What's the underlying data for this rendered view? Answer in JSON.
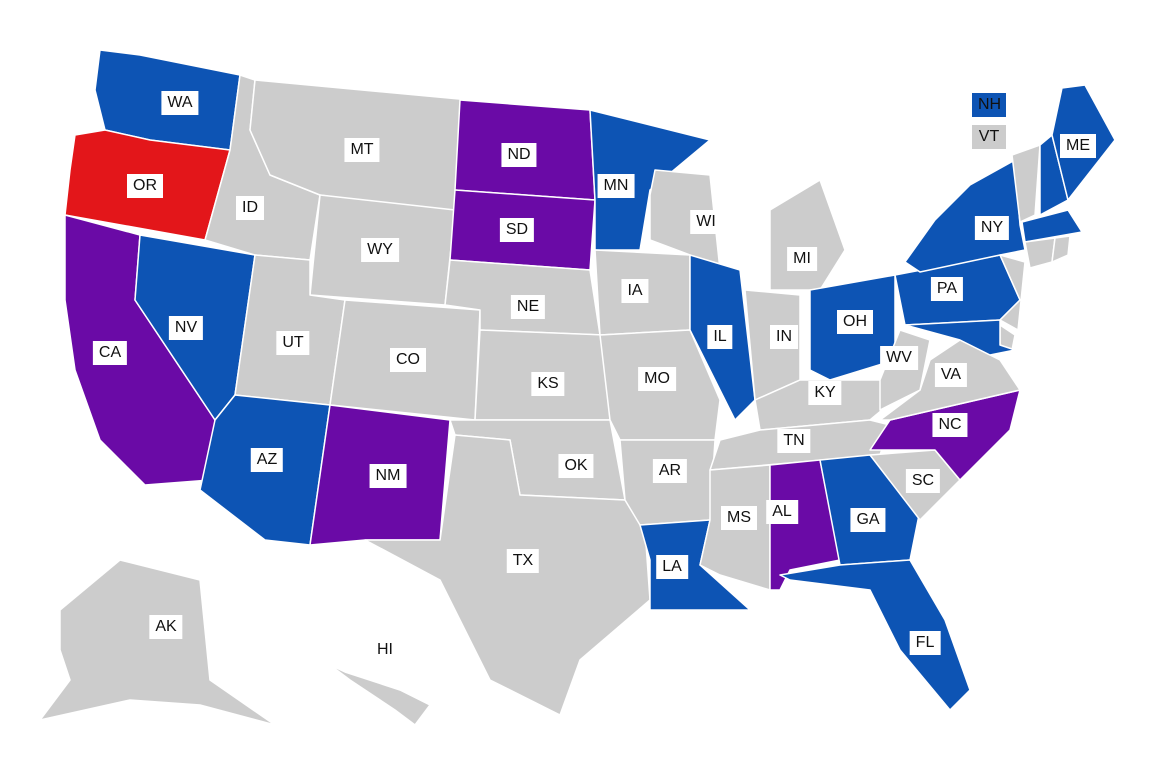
{
  "colors": {
    "blue": "#0d54b4",
    "purple": "#6a0aa6",
    "red": "#e3161a",
    "gray": "#cccccc"
  },
  "legend": [
    {
      "label": "NH",
      "color": "blue"
    },
    {
      "label": "VT",
      "color": "gray"
    }
  ],
  "states": [
    {
      "id": "WA",
      "color": "blue",
      "label": "WA"
    },
    {
      "id": "OR",
      "color": "red",
      "label": "OR"
    },
    {
      "id": "CA",
      "color": "purple",
      "label": "CA"
    },
    {
      "id": "NV",
      "color": "blue",
      "label": "NV"
    },
    {
      "id": "ID",
      "color": "gray",
      "label": "ID"
    },
    {
      "id": "MT",
      "color": "gray",
      "label": "MT"
    },
    {
      "id": "WY",
      "color": "gray",
      "label": "WY"
    },
    {
      "id": "UT",
      "color": "gray",
      "label": "UT"
    },
    {
      "id": "CO",
      "color": "gray",
      "label": "CO"
    },
    {
      "id": "AZ",
      "color": "blue",
      "label": "AZ"
    },
    {
      "id": "NM",
      "color": "purple",
      "label": "NM"
    },
    {
      "id": "ND",
      "color": "purple",
      "label": "ND"
    },
    {
      "id": "SD",
      "color": "purple",
      "label": "SD"
    },
    {
      "id": "NE",
      "color": "gray",
      "label": "NE"
    },
    {
      "id": "KS",
      "color": "gray",
      "label": "KS"
    },
    {
      "id": "OK",
      "color": "gray",
      "label": "OK"
    },
    {
      "id": "TX",
      "color": "gray",
      "label": "TX"
    },
    {
      "id": "MN",
      "color": "blue",
      "label": "MN"
    },
    {
      "id": "IA",
      "color": "gray",
      "label": "IA"
    },
    {
      "id": "MO",
      "color": "gray",
      "label": "MO"
    },
    {
      "id": "AR",
      "color": "gray",
      "label": "AR"
    },
    {
      "id": "LA",
      "color": "blue",
      "label": "LA"
    },
    {
      "id": "WI",
      "color": "gray",
      "label": "WI"
    },
    {
      "id": "IL",
      "color": "blue",
      "label": "IL"
    },
    {
      "id": "MI",
      "color": "gray",
      "label": "MI"
    },
    {
      "id": "IN",
      "color": "gray",
      "label": "IN"
    },
    {
      "id": "OH",
      "color": "blue",
      "label": "OH"
    },
    {
      "id": "KY",
      "color": "gray",
      "label": "KY"
    },
    {
      "id": "TN",
      "color": "gray",
      "label": "TN"
    },
    {
      "id": "MS",
      "color": "gray",
      "label": "MS"
    },
    {
      "id": "AL",
      "color": "purple",
      "label": "AL"
    },
    {
      "id": "GA",
      "color": "blue",
      "label": "GA"
    },
    {
      "id": "FL",
      "color": "blue",
      "label": "FL"
    },
    {
      "id": "SC",
      "color": "gray",
      "label": "SC"
    },
    {
      "id": "NC",
      "color": "purple",
      "label": "NC"
    },
    {
      "id": "VA",
      "color": "gray",
      "label": "VA"
    },
    {
      "id": "WV",
      "color": "gray",
      "label": "WV"
    },
    {
      "id": "PA",
      "color": "blue",
      "label": "PA"
    },
    {
      "id": "NY",
      "color": "blue",
      "label": "NY"
    },
    {
      "id": "NJ",
      "color": "gray",
      "label": ""
    },
    {
      "id": "DE",
      "color": "gray",
      "label": ""
    },
    {
      "id": "MD",
      "color": "blue",
      "label": ""
    },
    {
      "id": "VT",
      "color": "gray",
      "label": ""
    },
    {
      "id": "NH",
      "color": "blue",
      "label": ""
    },
    {
      "id": "ME",
      "color": "blue",
      "label": "ME"
    },
    {
      "id": "MA",
      "color": "blue",
      "label": ""
    },
    {
      "id": "CT",
      "color": "gray",
      "label": ""
    },
    {
      "id": "RI",
      "color": "gray",
      "label": ""
    },
    {
      "id": "AK",
      "color": "gray",
      "label": "AK"
    },
    {
      "id": "HI",
      "color": "gray",
      "label": "HI"
    }
  ]
}
